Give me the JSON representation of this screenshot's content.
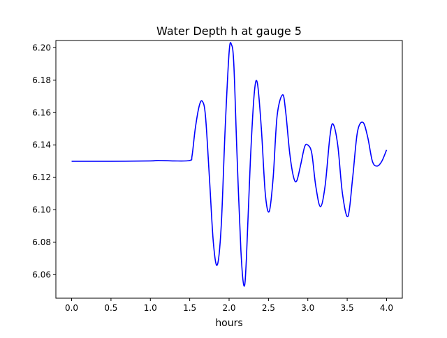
{
  "chart_data": {
    "type": "line",
    "title": "Water Depth h at gauge 5",
    "xlabel": "hours",
    "ylabel": "",
    "xlim": [
      -0.2,
      4.2
    ],
    "ylim": [
      6.0455,
      6.2045
    ],
    "xticks": [
      0.0,
      0.5,
      1.0,
      1.5,
      2.0,
      2.5,
      3.0,
      3.5,
      4.0
    ],
    "xtick_labels": [
      "0.0",
      "0.5",
      "1.0",
      "1.5",
      "2.0",
      "2.5",
      "3.0",
      "3.5",
      "4.0"
    ],
    "yticks": [
      6.06,
      6.08,
      6.1,
      6.12,
      6.14,
      6.16,
      6.18,
      6.2
    ],
    "ytick_labels": [
      "6.06",
      "6.08",
      "6.10",
      "6.12",
      "6.14",
      "6.16",
      "6.18",
      "6.20"
    ],
    "grid": false,
    "series": [
      {
        "color": "#0000ff",
        "x": [
          0.0,
          0.5,
          1.0,
          1.1,
          1.3,
          1.5,
          1.53,
          1.57,
          1.62,
          1.66,
          1.7,
          1.75,
          1.8,
          1.85,
          1.9,
          1.95,
          2.0,
          2.03,
          2.06,
          2.1,
          2.15,
          2.19,
          2.22,
          2.27,
          2.32,
          2.36,
          2.41,
          2.46,
          2.51,
          2.56,
          2.61,
          2.68,
          2.72,
          2.77,
          2.82,
          2.86,
          2.91,
          2.96,
          3.0,
          3.05,
          3.1,
          3.16,
          3.22,
          3.28,
          3.32,
          3.38,
          3.44,
          3.51,
          3.57,
          3.63,
          3.7,
          3.76,
          3.82,
          3.88,
          3.94,
          4.0
        ],
        "y": [
          6.13,
          6.13,
          6.1302,
          6.1305,
          6.1302,
          6.1305,
          6.1335,
          6.15,
          6.164,
          6.167,
          6.158,
          6.12,
          6.08,
          6.066,
          6.09,
          6.15,
          6.197,
          6.202,
          6.19,
          6.135,
          6.075,
          6.053,
          6.07,
          6.13,
          6.172,
          6.178,
          6.15,
          6.11,
          6.099,
          6.12,
          6.158,
          6.171,
          6.16,
          6.135,
          6.12,
          6.118,
          6.128,
          6.139,
          6.14,
          6.135,
          6.115,
          6.102,
          6.115,
          6.145,
          6.153,
          6.14,
          6.11,
          6.096,
          6.12,
          6.148,
          6.154,
          6.145,
          6.13,
          6.127,
          6.13,
          6.137
        ]
      }
    ]
  }
}
